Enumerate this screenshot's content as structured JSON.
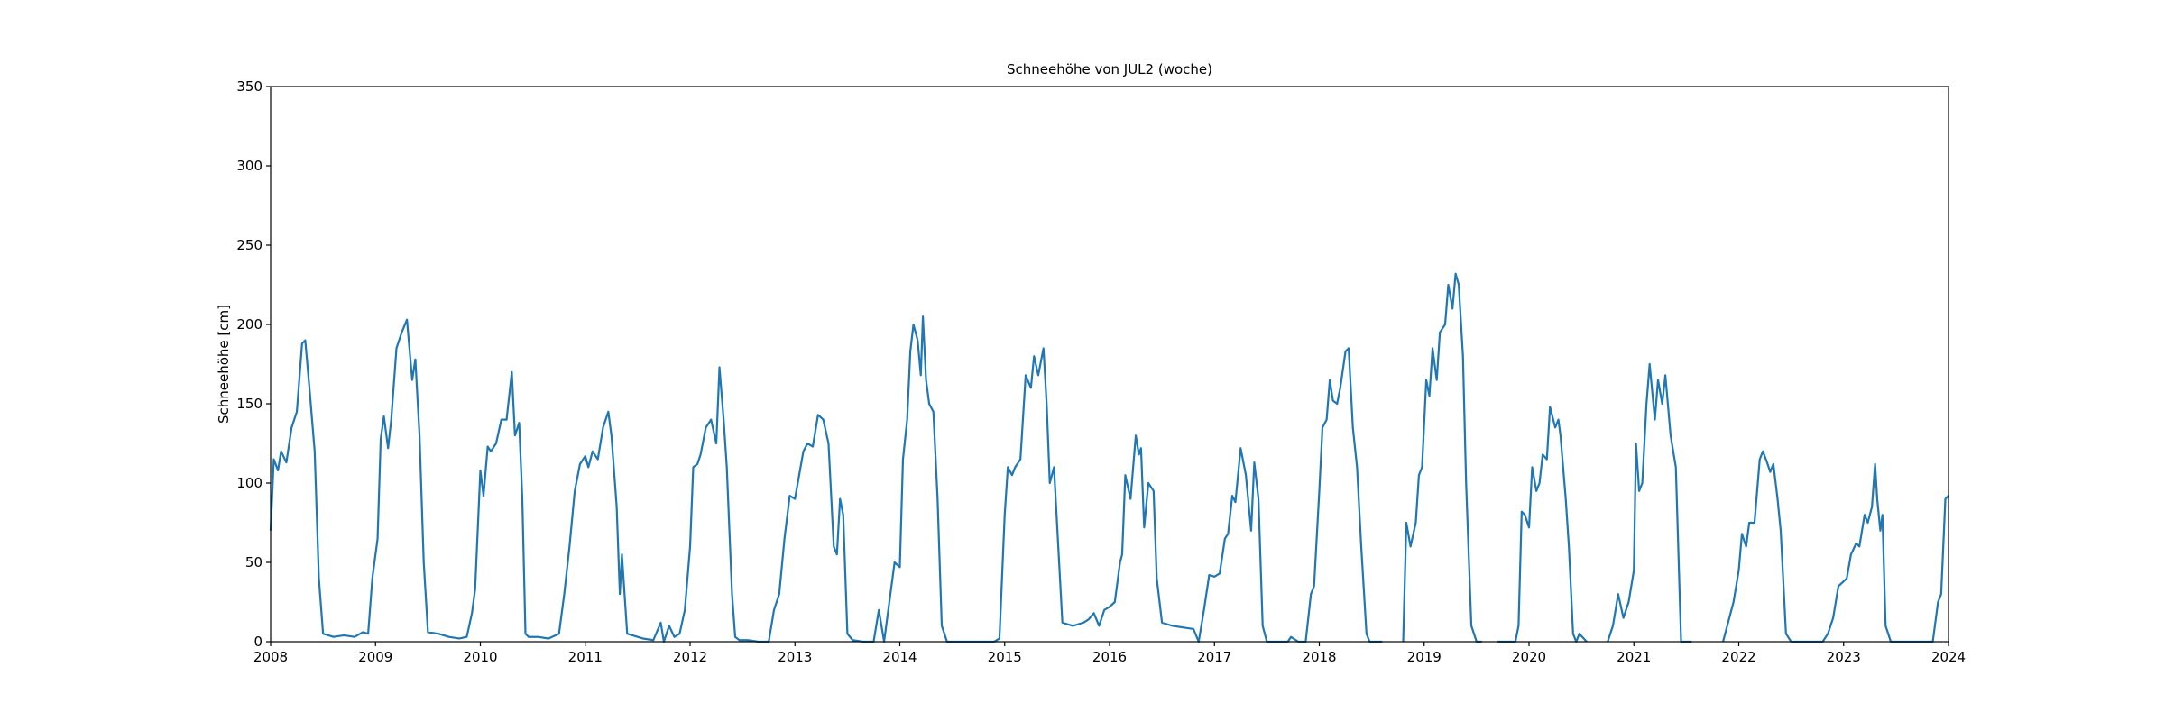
{
  "chart_data": {
    "type": "line",
    "title": "Schneehöhe von JUL2 (woche)",
    "ylabel": "Schneehöhe [cm]",
    "color": "#1f77b4",
    "xlim": [
      2008,
      2024
    ],
    "xticks": [
      2008,
      2009,
      2010,
      2011,
      2012,
      2013,
      2014,
      2015,
      2016,
      2017,
      2018,
      2019,
      2020,
      2021,
      2022,
      2023,
      2024
    ],
    "ylim": [
      0,
      350
    ],
    "yticks": [
      0,
      50,
      100,
      150,
      200,
      250,
      300,
      350
    ],
    "x": [
      2008.0,
      2008.03,
      2008.07,
      2008.1,
      2008.15,
      2008.2,
      2008.25,
      2008.3,
      2008.33,
      2008.37,
      2008.42,
      2008.46,
      2008.5,
      2008.6,
      2008.7,
      2008.8,
      2008.88,
      2008.93,
      2008.97,
      2009.02,
      2009.05,
      2009.08,
      2009.12,
      2009.15,
      2009.2,
      2009.25,
      2009.3,
      2009.35,
      2009.38,
      2009.42,
      2009.46,
      2009.5,
      2009.6,
      2009.7,
      2009.8,
      2009.87,
      2009.92,
      2009.95,
      2010.0,
      2010.03,
      2010.07,
      2010.1,
      2010.15,
      2010.2,
      2010.25,
      2010.3,
      2010.33,
      2010.37,
      2010.4,
      2010.43,
      2010.46,
      2010.55,
      2010.65,
      2010.75,
      2010.8,
      2010.85,
      2010.9,
      2010.95,
      2011.0,
      2011.03,
      2011.07,
      2011.12,
      2011.17,
      2011.22,
      2011.25,
      2011.3,
      2011.33,
      2011.35,
      2011.4,
      2011.45,
      2011.55,
      2011.65,
      2011.72,
      2011.75,
      2011.8,
      2011.85,
      2011.9,
      2011.95,
      2012.0,
      2012.03,
      2012.07,
      2012.1,
      2012.15,
      2012.2,
      2012.25,
      2012.28,
      2012.32,
      2012.35,
      2012.4,
      2012.43,
      2012.47,
      2012.55,
      2012.65,
      2012.75,
      2012.8,
      2012.85,
      2012.9,
      2012.95,
      2013.0,
      2013.04,
      2013.08,
      2013.12,
      2013.17,
      2013.22,
      2013.27,
      2013.32,
      2013.37,
      2013.4,
      2013.43,
      2013.46,
      2013.5,
      2013.55,
      2013.65,
      2013.75,
      2013.8,
      2013.85,
      2013.9,
      2013.95,
      2014.0,
      2014.03,
      2014.07,
      2014.1,
      2014.13,
      2014.17,
      2014.2,
      2014.22,
      2014.25,
      2014.28,
      2014.32,
      2014.36,
      2014.4,
      2014.45,
      2014.5,
      2014.6,
      2014.7,
      2014.8,
      2014.9,
      2014.95,
      2015.0,
      2015.03,
      2015.07,
      2015.1,
      2015.15,
      2015.2,
      2015.25,
      2015.28,
      2015.32,
      2015.37,
      2015.4,
      2015.43,
      2015.47,
      2015.55,
      2015.65,
      2015.75,
      2015.8,
      2015.85,
      2015.9,
      2015.95,
      2016.0,
      2016.05,
      2016.1,
      2016.12,
      2016.15,
      2016.2,
      2016.25,
      2016.28,
      2016.3,
      2016.33,
      2016.37,
      2016.42,
      2016.45,
      2016.5,
      2016.6,
      2016.7,
      2016.8,
      2016.85,
      2016.9,
      2016.95,
      2017.0,
      2017.05,
      2017.1,
      2017.13,
      2017.17,
      2017.2,
      2017.25,
      2017.3,
      2017.35,
      2017.38,
      2017.42,
      2017.46,
      2017.5,
      2017.6,
      2017.7,
      2017.73,
      2017.8,
      2017.87,
      2017.92,
      2017.95,
      2018.0,
      2018.03,
      2018.07,
      2018.1,
      2018.13,
      2018.17,
      2018.2,
      2018.25,
      2018.28,
      2018.32,
      2018.36,
      2018.4,
      2018.45,
      2018.48,
      2018.55,
      2018.6,
      2018.7,
      2018.8,
      2018.83,
      2018.87,
      2018.92,
      2018.95,
      2018.98,
      2019.02,
      2019.05,
      2019.08,
      2019.12,
      2019.15,
      2019.2,
      2019.23,
      2019.27,
      2019.3,
      2019.33,
      2019.37,
      2019.4,
      2019.45,
      2019.5,
      2019.55,
      2019.6,
      2019.7,
      2019.8,
      2019.87,
      2019.9,
      2019.93,
      2019.96,
      2020.0,
      2020.03,
      2020.07,
      2020.1,
      2020.13,
      2020.17,
      2020.2,
      2020.25,
      2020.28,
      2020.3,
      2020.35,
      2020.38,
      2020.42,
      2020.45,
      2020.48,
      2020.55,
      2020.65,
      2020.75,
      2020.8,
      2020.85,
      2020.9,
      2020.95,
      2021.0,
      2021.02,
      2021.05,
      2021.08,
      2021.12,
      2021.15,
      2021.2,
      2021.23,
      2021.27,
      2021.3,
      2021.35,
      2021.4,
      2021.45,
      2021.5,
      2021.55,
      2021.7,
      2021.85,
      2021.95,
      2022.0,
      2022.03,
      2022.07,
      2022.1,
      2022.15,
      2022.2,
      2022.23,
      2022.27,
      2022.3,
      2022.33,
      2022.37,
      2022.4,
      2022.45,
      2022.5,
      2022.6,
      2022.7,
      2022.8,
      2022.85,
      2022.9,
      2022.95,
      2023.0,
      2023.03,
      2023.07,
      2023.12,
      2023.15,
      2023.2,
      2023.23,
      2023.27,
      2023.3,
      2023.32,
      2023.35,
      2023.37,
      2023.4,
      2023.45,
      2023.5,
      2023.6,
      2023.7,
      2023.8,
      2023.85,
      2023.9,
      2023.93,
      2023.97,
      2024.0
    ],
    "values": [
      70,
      115,
      108,
      120,
      113,
      135,
      145,
      188,
      190,
      160,
      120,
      40,
      5,
      3,
      4,
      3,
      6,
      5,
      40,
      65,
      128,
      142,
      122,
      140,
      185,
      195,
      203,
      165,
      178,
      130,
      50,
      6,
      5,
      3,
      2,
      3,
      18,
      33,
      108,
      92,
      123,
      120,
      125,
      140,
      140,
      170,
      130,
      138,
      90,
      5,
      3,
      3,
      2,
      5,
      30,
      60,
      95,
      112,
      117,
      110,
      120,
      115,
      135,
      145,
      130,
      85,
      30,
      55,
      5,
      4,
      2,
      1,
      12,
      0,
      10,
      3,
      5,
      20,
      60,
      110,
      112,
      118,
      135,
      140,
      125,
      173,
      140,
      110,
      30,
      3,
      1,
      1,
      0,
      0,
      20,
      30,
      65,
      92,
      90,
      105,
      120,
      125,
      123,
      143,
      140,
      125,
      60,
      55,
      90,
      80,
      5,
      1,
      0,
      0,
      20,
      0,
      25,
      50,
      47,
      115,
      140,
      183,
      200,
      190,
      168,
      205,
      165,
      150,
      145,
      90,
      10,
      0,
      0,
      0,
      0,
      0,
      0,
      2,
      80,
      110,
      105,
      110,
      115,
      168,
      160,
      180,
      168,
      185,
      150,
      100,
      110,
      12,
      10,
      12,
      14,
      18,
      10,
      20,
      22,
      25,
      50,
      55,
      105,
      90,
      130,
      118,
      122,
      72,
      100,
      95,
      40,
      12,
      10,
      9,
      8,
      0,
      20,
      42,
      41,
      43,
      65,
      68,
      92,
      88,
      122,
      105,
      70,
      113,
      90,
      10,
      0,
      0,
      0,
      3,
      0,
      0,
      30,
      35,
      95,
      135,
      140,
      165,
      152,
      150,
      160,
      183,
      185,
      135,
      110,
      60,
      5,
      0,
      0,
      0,
      null,
      0,
      75,
      60,
      75,
      105,
      110,
      165,
      155,
      185,
      165,
      195,
      200,
      225,
      210,
      232,
      225,
      180,
      100,
      10,
      0,
      0,
      null,
      0,
      0,
      0,
      10,
      82,
      80,
      72,
      110,
      95,
      100,
      118,
      115,
      148,
      135,
      140,
      130,
      90,
      60,
      5,
      0,
      5,
      0,
      null,
      0,
      10,
      30,
      15,
      25,
      45,
      125,
      95,
      100,
      150,
      175,
      140,
      165,
      150,
      168,
      130,
      110,
      0,
      0,
      0,
      null,
      0,
      25,
      45,
      68,
      60,
      75,
      75,
      115,
      120,
      113,
      107,
      112,
      90,
      70,
      5,
      0,
      0,
      0,
      0,
      5,
      15,
      35,
      38,
      40,
      55,
      62,
      60,
      80,
      75,
      85,
      112,
      90,
      70,
      80,
      10,
      0,
      0,
      0,
      0,
      0,
      0,
      25,
      30,
      90,
      92
    ]
  }
}
